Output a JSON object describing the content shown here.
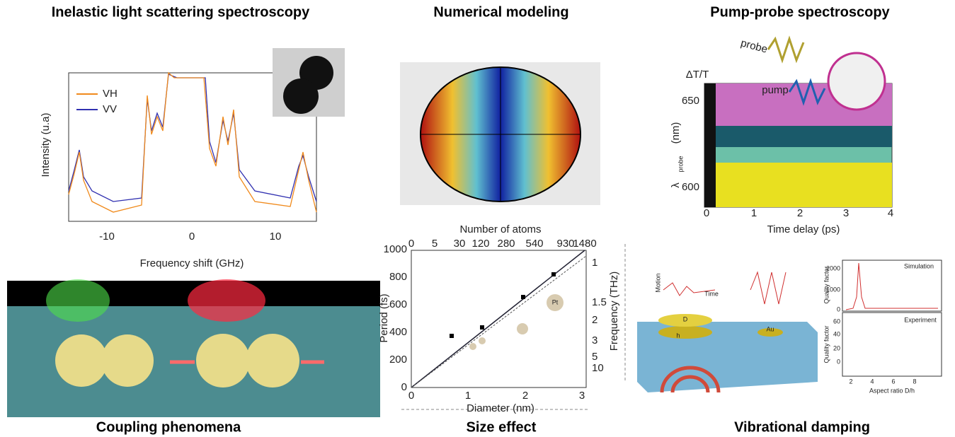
{
  "panels": {
    "inelastic": {
      "title": "Inelastic light scattering spectroscopy",
      "x_label": "Frequency shift (GHz)",
      "y_label": "Intensity (u.a)",
      "x_ticks": [
        "-10",
        "0",
        "10"
      ],
      "legend": [
        "VH",
        "VV"
      ]
    },
    "modeling": {
      "title": "Numerical modeling"
    },
    "pump_probe": {
      "title": "Pump-probe spectroscopy",
      "signal": "ΔT/T",
      "y_label_symbol": "λ",
      "y_label_sub": "probe",
      "y_label_unit": "(nm)",
      "y_ticks": [
        "650",
        "600"
      ],
      "x_ticks": [
        "0",
        "1",
        "2",
        "3",
        "4"
      ],
      "x_label": "Time delay (ps)",
      "probe": "probe",
      "pump": "pump"
    },
    "coupling": {
      "title": "Coupling phenomena"
    },
    "size": {
      "title": "Size effect",
      "top_label": "Number of atoms",
      "top_ticks": [
        "0",
        "5",
        "30",
        "120",
        "280",
        "540",
        "930",
        "1480"
      ],
      "y_label": "Period (fs)",
      "y_ticks": [
        "0",
        "200",
        "400",
        "600",
        "800",
        "1000"
      ],
      "x_label": "Diameter (nm)",
      "x_ticks": [
        "0",
        "1",
        "2",
        "3"
      ],
      "right_label": "Frequency (THz)",
      "right_ticks": [
        "1",
        "1.5",
        "2",
        "3",
        "5",
        "10"
      ],
      "element": "Pt"
    },
    "damping": {
      "title": "Vibrational damping",
      "motion": "Motion",
      "time": "Time",
      "diameter": "D",
      "height": "h",
      "metal": "Au",
      "simulation": "Simulation",
      "experiment": "Experiment",
      "quality_factor": "Quality factor",
      "sim_ticks": [
        "0",
        "1000",
        "2000"
      ],
      "exp_ticks": [
        "0",
        "20",
        "40",
        "60"
      ],
      "x_ticks": [
        "2",
        "4",
        "6",
        "8"
      ],
      "x_label": "Aspect ratio D/h"
    }
  }
}
